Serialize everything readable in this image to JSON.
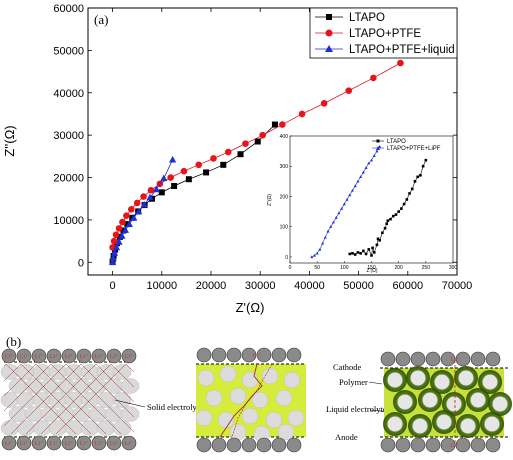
{
  "chart_data": {
    "type": "scatter",
    "panel_label": "(a)",
    "xlabel": "Z'(Ω)",
    "ylabel": "Z''(Ω)",
    "xlim": [
      -5000,
      70000
    ],
    "ylim": [
      -3000,
      60000
    ],
    "xticks": [
      "0",
      "10000",
      "20000",
      "30000",
      "40000",
      "50000",
      "60000",
      "70000"
    ],
    "yticks": [
      "0",
      "10000",
      "20000",
      "30000",
      "40000",
      "50000",
      "60000"
    ],
    "legend": "top-right",
    "series": [
      {
        "name": "LTAPO",
        "color": "#000000",
        "marker": "square",
        "x": [
          0,
          200,
          500,
          900,
          1500,
          2200,
          3000,
          4000,
          5200,
          6500,
          8000,
          10000,
          12500,
          15500,
          19000,
          22500,
          26000,
          29500,
          33000
        ],
        "y": [
          200,
          1500,
          3000,
          4500,
          6000,
          7500,
          9000,
          10500,
          12000,
          13500,
          15000,
          16500,
          18000,
          19600,
          21200,
          23000,
          25500,
          28500,
          32500
        ]
      },
      {
        "name": "LTAPO+PTFE",
        "color": "#e8141b",
        "marker": "circle",
        "x": [
          0,
          300,
          700,
          1300,
          2000,
          2800,
          3800,
          5000,
          6300,
          7800,
          9600,
          11800,
          14500,
          17500,
          20500,
          23500,
          27000,
          30500,
          34500,
          38500,
          43000,
          48000,
          53000,
          58500
        ],
        "y": [
          3500,
          5000,
          6500,
          8000,
          9500,
          11000,
          12500,
          14000,
          15500,
          17000,
          18500,
          20000,
          21500,
          23000,
          24500,
          26000,
          28000,
          30000,
          32500,
          35000,
          37500,
          40500,
          43500,
          47000
        ]
      },
      {
        "name": "LTAPO+PTFE+liquid",
        "color": "#1f2fd6",
        "marker": "triangle",
        "x": [
          0,
          150,
          400,
          800,
          1300,
          1900,
          2600,
          3400,
          4300,
          5300,
          6400,
          7600,
          8900,
          10400,
          12200
        ],
        "y": [
          0,
          1000,
          2200,
          3500,
          4800,
          6200,
          7600,
          9000,
          10500,
          12000,
          13600,
          15300,
          17200,
          19800,
          24200
        ]
      }
    ],
    "inset": {
      "xlabel": "Z'(Ω)",
      "ylabel": "Z''(Ω)",
      "xlim": [
        0,
        300
      ],
      "ylim": [
        -20,
        400
      ],
      "xticks": [
        "0",
        "50",
        "100",
        "150",
        "200",
        "250",
        "300"
      ],
      "yticks": [
        "0",
        "100",
        "200",
        "300",
        "400"
      ],
      "series": [
        {
          "name": "LTAPO",
          "color": "#000000",
          "x": [
            110,
            115,
            120,
            125,
            130,
            135,
            140,
            145,
            150,
            152,
            155,
            160,
            162,
            165,
            170,
            175,
            178,
            180,
            185,
            190,
            195,
            200,
            205,
            210,
            215,
            220,
            225,
            230,
            235,
            240,
            245,
            250
          ],
          "y": [
            10,
            12,
            8,
            15,
            12,
            20,
            10,
            25,
            5,
            30,
            15,
            40,
            60,
            55,
            80,
            95,
            110,
            120,
            125,
            135,
            140,
            150,
            160,
            175,
            190,
            210,
            225,
            250,
            265,
            270,
            300,
            320
          ]
        },
        {
          "name": "LTAPO+PTFE+LiPF",
          "color": "#1f2fd6",
          "x": [
            40,
            45,
            50,
            55,
            60,
            65,
            70,
            75,
            80,
            85,
            90,
            95,
            100,
            105,
            110,
            115,
            120,
            125,
            130,
            135,
            140,
            145,
            150,
            155,
            160,
            165
          ],
          "y": [
            0,
            5,
            12,
            25,
            45,
            65,
            85,
            100,
            115,
            130,
            145,
            160,
            175,
            190,
            205,
            220,
            235,
            250,
            265,
            280,
            295,
            310,
            320,
            335,
            350,
            365
          ]
        }
      ]
    }
  },
  "schematic": {
    "panel_label": "(b)",
    "li_label": "Li⁺",
    "labels": {
      "solid_electrolyte": "Solid electrolyte particle",
      "cathode": "Cathode",
      "polymer": "Polymer",
      "liquid_electrolyte": "Liquid electrolyte",
      "anode": "Anode"
    }
  }
}
